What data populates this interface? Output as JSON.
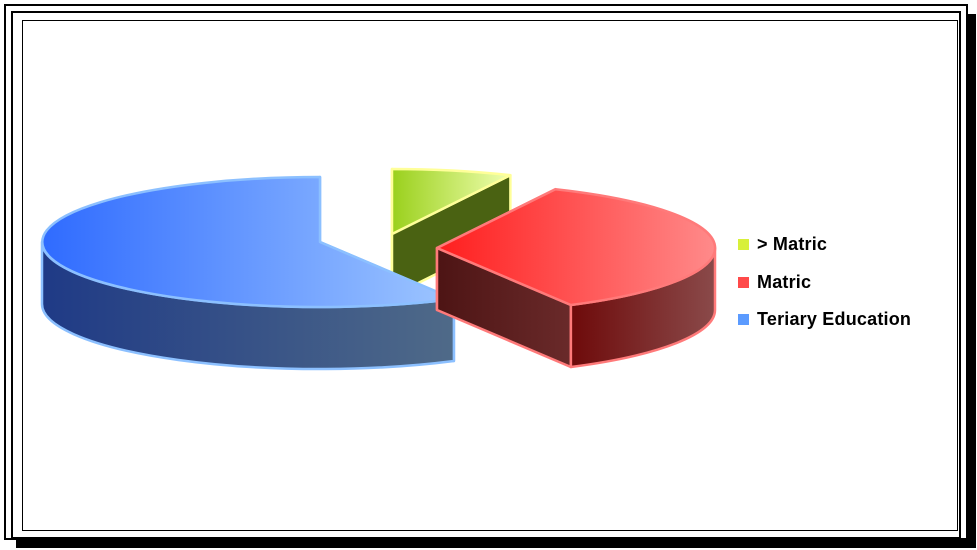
{
  "chart_data": {
    "type": "pie",
    "style": "3d-exploded",
    "categories": [
      "> Matric",
      "Matric",
      "Teriary Education"
    ],
    "values": [
      7,
      35,
      58
    ],
    "colors": [
      "#b5e61d",
      "#ff3b3b",
      "#4a86ff"
    ],
    "legend_position": "right"
  },
  "legend": {
    "items": [
      {
        "label": "> Matric",
        "color": "#d8f03a"
      },
      {
        "label": "Matric",
        "color": "#ff4a4a"
      },
      {
        "label": "Teriary Education",
        "color": "#5b9bff"
      }
    ]
  }
}
